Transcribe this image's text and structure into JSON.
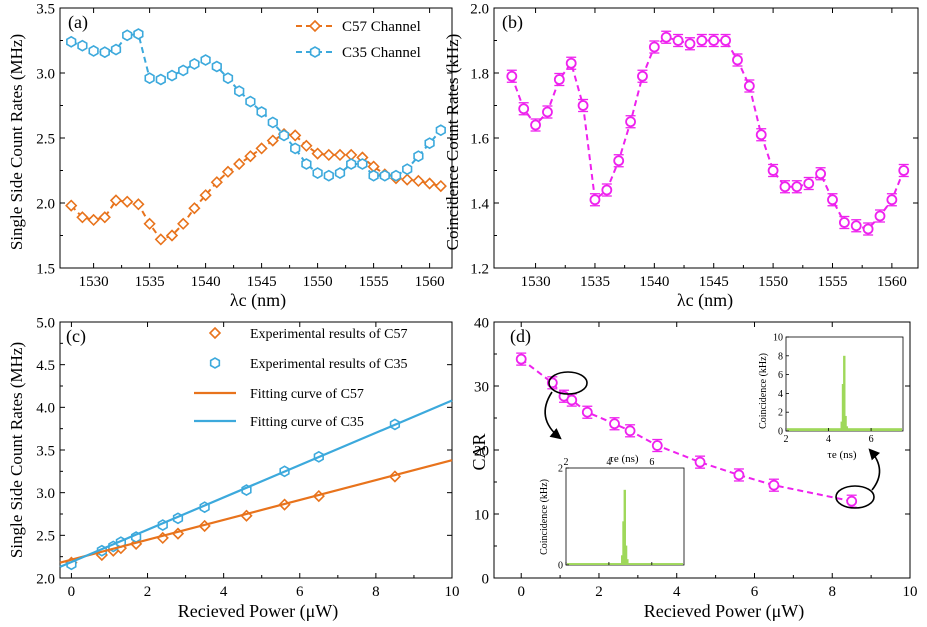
{
  "chart_data": [
    {
      "id": "a",
      "panel_label": "(a)",
      "type": "line",
      "xlabel": "λc (nm)",
      "ylabel": "Single Side Count Rates (MHz)",
      "xlim": [
        1527,
        1562
      ],
      "ylim": [
        1.5,
        3.5
      ],
      "xticks": [
        1530,
        1535,
        1540,
        1545,
        1550,
        1555,
        1560
      ],
      "yticks": [
        1.5,
        2.0,
        2.5,
        3.0,
        3.5
      ],
      "ytick_labels": [
        "1.5",
        "2.0",
        "2.5",
        "3.0",
        "3.5"
      ],
      "legend": "top-right",
      "series": [
        {
          "name": "C57 Channel",
          "color": "#e8731c",
          "marker": "diamond",
          "x": [
            1528,
            1529,
            1530,
            1531,
            1532,
            1533,
            1534,
            1535,
            1536,
            1537,
            1538,
            1539,
            1540,
            1541,
            1542,
            1543,
            1544,
            1545,
            1546,
            1547,
            1548,
            1549,
            1550,
            1551,
            1552,
            1553,
            1554,
            1555,
            1556,
            1557,
            1558,
            1559,
            1560,
            1561
          ],
          "values": [
            1.98,
            1.89,
            1.87,
            1.89,
            2.02,
            2.01,
            1.99,
            1.84,
            1.72,
            1.75,
            1.84,
            1.96,
            2.06,
            2.16,
            2.24,
            2.3,
            2.36,
            2.42,
            2.48,
            2.53,
            2.52,
            2.44,
            2.38,
            2.37,
            2.37,
            2.37,
            2.35,
            2.28,
            2.22,
            2.19,
            2.18,
            2.17,
            2.15,
            2.13
          ]
        },
        {
          "name": "C35 Channel",
          "color": "#3ca9dc",
          "marker": "hexagon",
          "x": [
            1528,
            1529,
            1530,
            1531,
            1532,
            1533,
            1534,
            1535,
            1536,
            1537,
            1538,
            1539,
            1540,
            1541,
            1542,
            1543,
            1544,
            1545,
            1546,
            1547,
            1548,
            1549,
            1550,
            1551,
            1552,
            1553,
            1554,
            1555,
            1556,
            1557,
            1558,
            1559,
            1560,
            1561
          ],
          "values": [
            3.24,
            3.21,
            3.17,
            3.16,
            3.18,
            3.29,
            3.3,
            2.96,
            2.95,
            2.98,
            3.02,
            3.07,
            3.1,
            3.05,
            2.96,
            2.86,
            2.78,
            2.7,
            2.62,
            2.52,
            2.42,
            2.3,
            2.23,
            2.21,
            2.23,
            2.3,
            2.3,
            2.21,
            2.21,
            2.21,
            2.26,
            2.36,
            2.46,
            2.56
          ]
        }
      ]
    },
    {
      "id": "b",
      "panel_label": "(b)",
      "type": "line",
      "xlabel": "λc (nm)",
      "ylabel": "Coincidence Count Rates (kHz)",
      "xlim": [
        1526.5,
        1562.2
      ],
      "ylim": [
        1.2,
        2.0
      ],
      "xticks": [
        1530,
        1535,
        1540,
        1545,
        1550,
        1555,
        1560
      ],
      "yticks": [
        1.2,
        1.4,
        1.6,
        1.8,
        2.0
      ],
      "ytick_labels": [
        "1.2",
        "1.4",
        "1.6",
        "1.8",
        "2.0"
      ],
      "series": [
        {
          "name": "Coincidence",
          "color": "#ee22ee",
          "marker": "circle",
          "error_bars": true,
          "x": [
            1528,
            1529,
            1530,
            1531,
            1532,
            1533,
            1534,
            1535,
            1536,
            1537,
            1538,
            1539,
            1540,
            1541,
            1542,
            1543,
            1544,
            1545,
            1546,
            1547,
            1548,
            1549,
            1550,
            1551,
            1552,
            1553,
            1554,
            1555,
            1556,
            1557,
            1558,
            1559,
            1560,
            1561
          ],
          "values": [
            1.79,
            1.69,
            1.64,
            1.68,
            1.78,
            1.83,
            1.7,
            1.41,
            1.44,
            1.53,
            1.65,
            1.79,
            1.88,
            1.91,
            1.9,
            1.89,
            1.9,
            1.9,
            1.9,
            1.84,
            1.76,
            1.61,
            1.5,
            1.45,
            1.45,
            1.46,
            1.49,
            1.41,
            1.34,
            1.33,
            1.32,
            1.36,
            1.41,
            1.5
          ]
        }
      ]
    },
    {
      "id": "c",
      "panel_label": "(c)",
      "type": "scatter",
      "xlabel": "Recieved Power (μW)",
      "ylabel": "Single Side Count Rates (MHz)",
      "xlim": [
        -0.3,
        10
      ],
      "ylim": [
        2.0,
        5.0
      ],
      "xticks": [
        0,
        2,
        4,
        6,
        8,
        10
      ],
      "yticks": [
        2.0,
        2.5,
        3.0,
        3.5,
        4.0,
        4.5,
        5.0
      ],
      "ytick_labels": [
        "2.0",
        "2.5",
        "3.0",
        "3.5",
        "4.0",
        "4.5",
        "5.0"
      ],
      "legend": "top-left",
      "series": [
        {
          "name": "Experimental results of C57",
          "color": "#e8731c",
          "marker": "diamond",
          "x": [
            0,
            0.8,
            1.1,
            1.3,
            1.7,
            2.4,
            2.8,
            3.5,
            4.6,
            5.6,
            6.5,
            8.5
          ],
          "values": [
            2.18,
            2.27,
            2.32,
            2.35,
            2.4,
            2.47,
            2.52,
            2.61,
            2.73,
            2.86,
            2.96,
            3.19
          ]
        },
        {
          "name": "Experimental results of C35",
          "color": "#3ca9dc",
          "marker": "hexagon",
          "x": [
            0,
            0.8,
            1.1,
            1.3,
            1.7,
            2.4,
            2.8,
            3.5,
            4.6,
            5.6,
            6.5,
            8.5
          ],
          "values": [
            2.16,
            2.32,
            2.37,
            2.42,
            2.48,
            2.62,
            2.7,
            2.83,
            3.03,
            3.25,
            3.42,
            3.8
          ]
        },
        {
          "name": "Fitting curve of C57",
          "color": "#e8731c",
          "kind": "line",
          "x": [
            -0.3,
            10
          ],
          "values": [
            2.18,
            3.38
          ]
        },
        {
          "name": "Fitting curve of C35",
          "color": "#3ca9dc",
          "kind": "line",
          "x": [
            -0.3,
            10
          ],
          "values": [
            2.13,
            4.08
          ]
        }
      ]
    },
    {
      "id": "d",
      "panel_label": "(d)",
      "type": "line",
      "xlabel": "Recieved Power (μW)",
      "ylabel": "CAR",
      "xlim": [
        -0.7,
        10
      ],
      "ylim": [
        0,
        40
      ],
      "xticks": [
        0,
        2,
        4,
        6,
        8,
        10
      ],
      "yticks": [
        0,
        10,
        20,
        30,
        40
      ],
      "ytick_labels": [
        "0",
        "10",
        "20",
        "30",
        "40"
      ],
      "series": [
        {
          "name": "CAR",
          "color": "#ee22ee",
          "marker": "circle",
          "error_bars": true,
          "x": [
            0,
            0.8,
            1.1,
            1.3,
            1.7,
            2.4,
            2.8,
            3.5,
            4.6,
            5.6,
            6.5,
            8.5
          ],
          "values": [
            34.2,
            30.5,
            28.4,
            27.8,
            25.9,
            24.1,
            23.0,
            20.7,
            18.1,
            16.1,
            14.5,
            12.0
          ]
        }
      ]
    },
    {
      "id": "inset-top",
      "type": "bar",
      "parent": "d",
      "xlabel": "τe (ns)",
      "ylabel": "Coincidence (kHz)",
      "xlim": [
        2,
        7.5
      ],
      "ylim": [
        0,
        10
      ],
      "xticks": [
        2,
        4,
        6
      ],
      "yticks": [
        0,
        2,
        4,
        6,
        8,
        10
      ],
      "color": "#9fd85a",
      "peak": {
        "x": [
          4.62,
          4.68,
          4.74,
          4.8,
          4.86
        ],
        "values": [
          1.0,
          5.0,
          8.0,
          1.6,
          0.5
        ]
      },
      "baseline": 0.3
    },
    {
      "id": "inset-bottom",
      "type": "bar",
      "parent": "d",
      "xlabel": "τe (ns)",
      "ylabel": "Coincidence (kHz)",
      "xlim": [
        2,
        7.5
      ],
      "ylim": [
        0,
        2
      ],
      "xticks": [
        2,
        4,
        6
      ],
      "yticks": [
        0,
        2
      ],
      "color": "#9fd85a",
      "peak": {
        "x": [
          4.62,
          4.68,
          4.74,
          4.8,
          4.86
        ],
        "values": [
          0.2,
          0.9,
          1.55,
          0.4,
          0.12
        ]
      },
      "baseline": 0.04
    }
  ]
}
